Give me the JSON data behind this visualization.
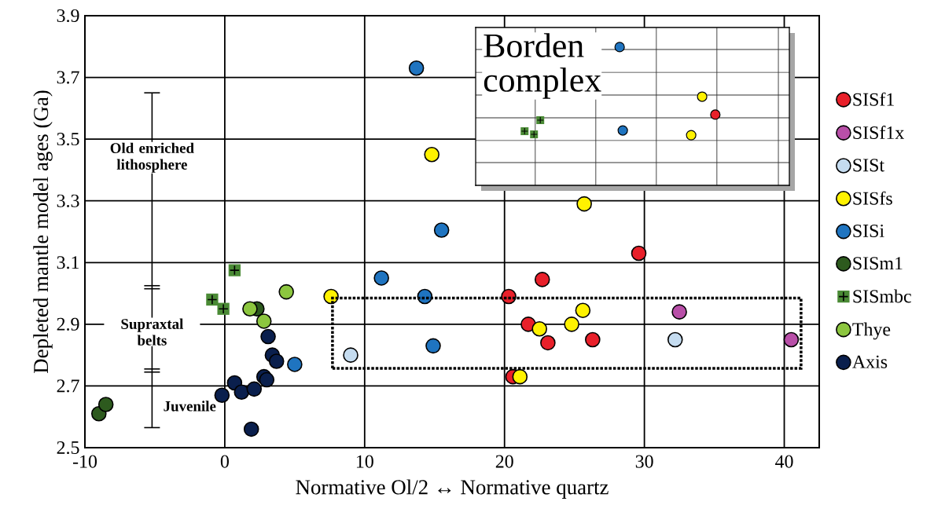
{
  "chart_data": [
    {
      "type": "scatter",
      "xlabel": "Normative Ol/2 ↔ Normative quartz",
      "ylabel": "Depleted mantle model ages (Ga)",
      "xlim": [
        -10,
        42.5
      ],
      "ylim": [
        2.5,
        3.9
      ],
      "xticks": [
        -10,
        0,
        10,
        20,
        30,
        40
      ],
      "yticks": [
        2.5,
        2.7,
        2.9,
        3.1,
        3.3,
        3.5,
        3.7,
        3.9
      ],
      "grid": true,
      "legend": "right",
      "marker": "circle",
      "series": [
        {
          "name": "SISf1",
          "color": "#e8202a",
          "x": [
            20.3,
            22.7,
            21.7,
            23.1,
            26.3,
            29.6,
            20.6
          ],
          "values": [
            2.99,
            3.045,
            2.9,
            2.84,
            2.85,
            3.13,
            2.73
          ]
        },
        {
          "name": "SISf1x",
          "color": "#b84fa8",
          "x": [
            32.5,
            40.5
          ],
          "values": [
            2.94,
            2.85
          ]
        },
        {
          "name": "SISt",
          "color": "#c5dcf0",
          "x": [
            9.0,
            32.2
          ],
          "values": [
            2.8,
            2.85
          ]
        },
        {
          "name": "SISfs",
          "color": "#fff200",
          "x": [
            14.8,
            25.7,
            7.6,
            22.5,
            24.8,
            25.6,
            21.1
          ],
          "values": [
            3.45,
            3.29,
            2.99,
            2.885,
            2.9,
            2.945,
            2.73
          ]
        },
        {
          "name": "SISi",
          "color": "#1f74c0",
          "x": [
            13.7,
            15.5,
            11.2,
            14.3,
            14.9,
            5.0
          ],
          "values": [
            3.73,
            3.205,
            3.05,
            2.99,
            2.83,
            2.77
          ]
        },
        {
          "name": "SISm1",
          "color": "#2d5a1e",
          "x": [
            -9.0,
            -8.5,
            2.3
          ],
          "values": [
            2.61,
            2.64,
            2.95
          ]
        },
        {
          "name": "SISmbc",
          "color": "#4a8a35",
          "marker": "square",
          "x": [
            0.7,
            -0.9,
            -0.1
          ],
          "values": [
            3.075,
            2.98,
            2.95
          ]
        },
        {
          "name": "Thye",
          "color": "#8cc63f",
          "x": [
            4.4,
            1.8,
            2.8
          ],
          "values": [
            3.005,
            2.95,
            2.91
          ]
        },
        {
          "name": "Axis",
          "color": "#0a1f4d",
          "x": [
            -0.2,
            0.7,
            1.2,
            2.1,
            2.8,
            3.0,
            3.1,
            3.4,
            3.7,
            1.9
          ],
          "values": [
            2.67,
            2.71,
            2.68,
            2.69,
            2.73,
            2.72,
            2.86,
            2.8,
            2.78,
            2.56
          ]
        }
      ],
      "annotations": [
        "Old enriched lithosphere",
        "Supraxtal belts",
        "Juvenile"
      ]
    },
    {
      "type": "other",
      "title": "Borden complex"
    }
  ]
}
